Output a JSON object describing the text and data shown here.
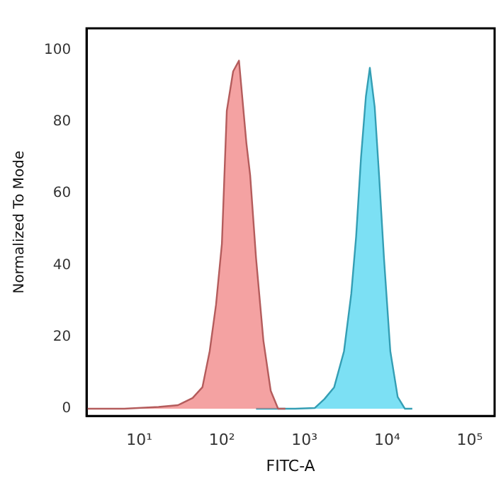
{
  "chart_data": {
    "type": "area",
    "xlabel": "FITC-A",
    "ylabel": "Normalized To Mode",
    "log": "x",
    "xlim": [
      2.3,
      200000
    ],
    "ylim": [
      -2,
      106
    ],
    "xticks": [
      {
        "value": 10,
        "label": "10¹"
      },
      {
        "value": 100,
        "label": "10²"
      },
      {
        "value": 1000,
        "label": "10³"
      },
      {
        "value": 10000,
        "label": "10⁴"
      },
      {
        "value": 100000,
        "label": "10⁵"
      }
    ],
    "yticks": [
      0,
      20,
      40,
      60,
      80,
      100
    ],
    "grid": false,
    "legend": false,
    "series": [
      {
        "color": "#f07a7a",
        "x": [
          2.31,
          6.58,
          17.1,
          29.4,
          44.2,
          58.1,
          71.1,
          84.9,
          100,
          114.6,
          136.8,
          161,
          198,
          220,
          259,
          318,
          390,
          479,
          586
        ],
        "values": [
          0,
          0,
          0.5,
          1,
          3,
          6,
          16,
          29,
          46,
          83,
          94,
          97,
          74,
          65,
          42,
          19,
          5,
          0,
          0
        ]
      },
      {
        "color": "#45d3f0",
        "x": [
          259,
          771,
          1327,
          1742,
          2286,
          3006,
          3681,
          4217,
          4831,
          5534,
          6180,
          7079,
          7998,
          9162,
          10940,
          13430,
          16440,
          20180
        ],
        "values": [
          0,
          0,
          0.2,
          2.7,
          6,
          16,
          32,
          48,
          70,
          87,
          95,
          84,
          65,
          42,
          16,
          3.3,
          0,
          0
        ]
      }
    ]
  }
}
